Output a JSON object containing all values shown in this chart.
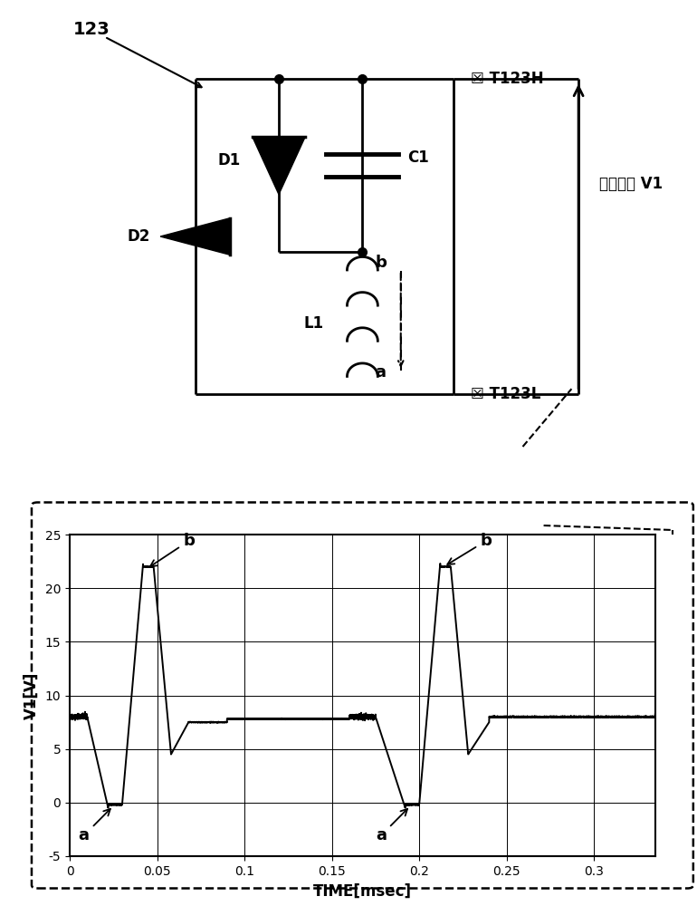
{
  "fig_width": 7.7,
  "fig_height": 10.0,
  "dpi": 100,
  "label_123": "123",
  "label_D1": "D1",
  "label_D2": "D2",
  "label_C1": "C1",
  "label_L1": "L1",
  "label_T123H": "☒ T123H",
  "label_T123L": "☒ T123L",
  "label_output": "输出电压 V1",
  "label_ylabel": "V1[V]",
  "label_xlabel": "TIME[msec]",
  "yticks": [
    -5,
    0,
    5,
    10,
    15,
    20,
    25
  ],
  "xticks": [
    0,
    0.05,
    0.1,
    0.15,
    0.2,
    0.25,
    0.3
  ],
  "xlim": [
    0,
    0.335
  ],
  "ylim": [
    -5,
    25
  ],
  "bg_color": "#ffffff",
  "line_color": "#000000"
}
